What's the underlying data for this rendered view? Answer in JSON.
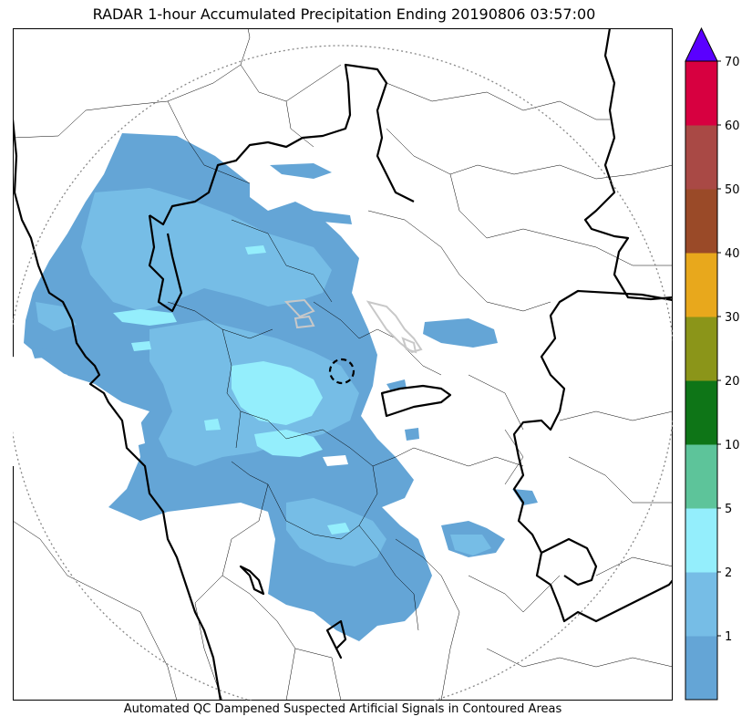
{
  "title": "RADAR 1-hour Accumulated Precipitation Ending 20190806 03:57:00",
  "footer": "Automated QC Dampened Suspected Artificial Signals in Contoured Areas",
  "colorbar": {
    "levels": [
      {
        "label": "",
        "color": "#64a5d6"
      },
      {
        "label": "1",
        "color": "#76bde6"
      },
      {
        "label": "2",
        "color": "#94eefc"
      },
      {
        "label": "5",
        "color": "#5dc49a"
      },
      {
        "label": "10",
        "color": "#0e7517"
      },
      {
        "label": "20",
        "color": "#8b9519"
      },
      {
        "label": "30",
        "color": "#e8a81c"
      },
      {
        "label": "40",
        "color": "#9a4a28"
      },
      {
        "label": "50",
        "color": "#a94945"
      },
      {
        "label": "60",
        "color": "#d70040"
      },
      {
        "label": "70",
        "color": "#5a00ff"
      }
    ],
    "extend_color": "#5a00ff"
  },
  "map_colors": {
    "precip_light": "#64a5d6",
    "precip_mid": "#76bde6",
    "precip_high": "#94eefc",
    "range_ring": "#888888",
    "borders": "#000000"
  }
}
